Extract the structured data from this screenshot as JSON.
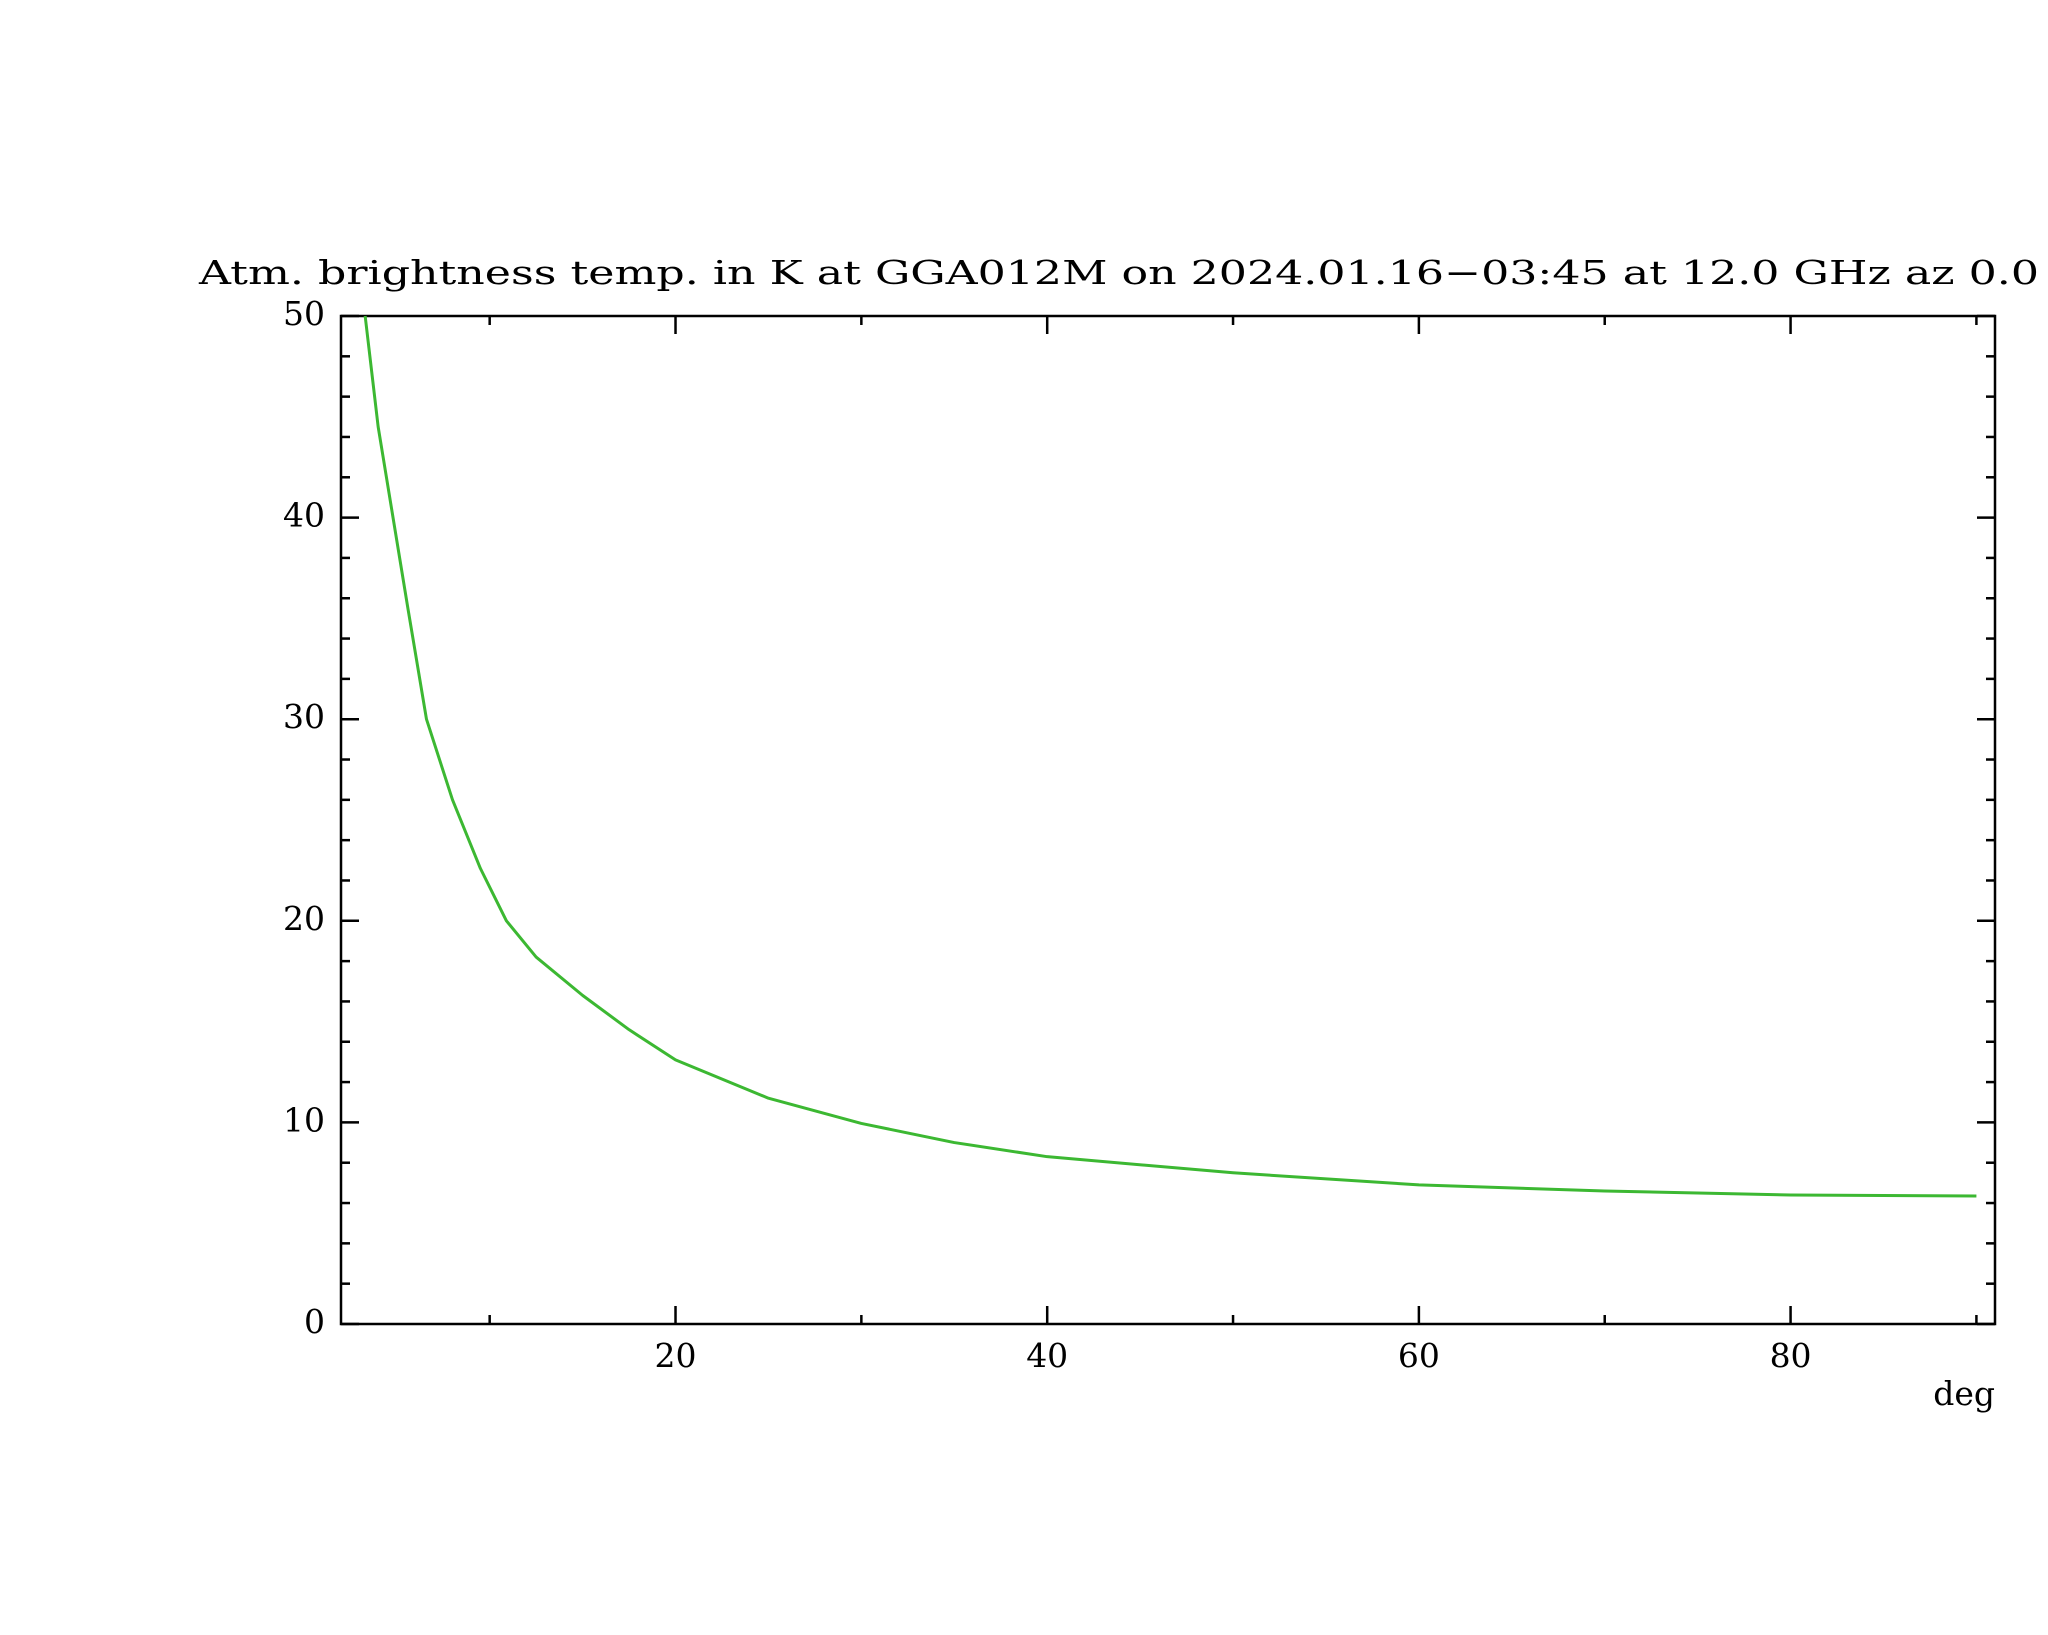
{
  "chart_data": {
    "type": "line",
    "title": "Atm. brightness temp. in K at GGA012M  on 2024.01.16−03:45 at  12.0 GHz az    0.0",
    "x_label": "deg",
    "series": [
      {
        "color": "#3cb832",
        "x": [
          3.3,
          4,
          4.8,
          5.6,
          6.6,
          8,
          9.5,
          10.9,
          12.5,
          15,
          17.5,
          20,
          25,
          30,
          35,
          40,
          50,
          60,
          70,
          80,
          90
        ],
        "values": [
          50,
          44.5,
          40,
          35.5,
          30,
          26,
          22.6,
          20,
          18.2,
          16.3,
          14.6,
          13.1,
          11.2,
          9.95,
          9.0,
          8.3,
          7.5,
          6.9,
          6.6,
          6.4,
          6.35
        ]
      }
    ],
    "xlim": [
      2,
      91
    ],
    "xticks": [
      20,
      40,
      60,
      80
    ],
    "xminorticks": [
      10,
      30,
      50,
      70,
      90
    ],
    "ylim": [
      0,
      50
    ],
    "yticks": [
      0,
      10,
      20,
      30,
      40,
      50
    ],
    "yminorticks": [
      2,
      4,
      6,
      8,
      12,
      14,
      16,
      18,
      22,
      24,
      26,
      28,
      32,
      34,
      36,
      38,
      42,
      44,
      46,
      48
    ]
  }
}
